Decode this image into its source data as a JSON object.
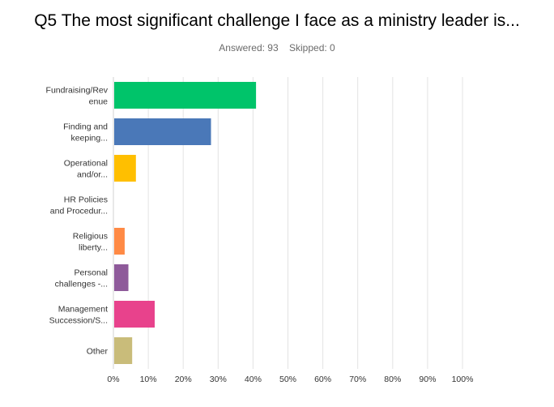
{
  "chart_data": {
    "type": "bar",
    "orientation": "horizontal",
    "title": "Q5 The most significant challenge I face as a ministry leader is...",
    "answered_label": "Answered: 93",
    "skipped_label": "Skipped: 0",
    "categories": [
      [
        "Fundraising/Rev",
        "enue"
      ],
      [
        "Finding and",
        "keeping..."
      ],
      [
        "Operational",
        "and/or..."
      ],
      [
        "HR Policies",
        "and Procedur..."
      ],
      [
        "Religious",
        "liberty..."
      ],
      [
        "Personal",
        "challenges -..."
      ],
      [
        "Management",
        "Succession/S..."
      ],
      [
        "Other"
      ]
    ],
    "values": [
      40.86,
      27.96,
      6.45,
      0,
      3.23,
      4.3,
      11.83,
      5.38
    ],
    "colors": [
      "#00c46a",
      "#4a78b8",
      "#ffbf00",
      "#b0b0b0",
      "#ff8a45",
      "#8e5a9a",
      "#e8428c",
      "#c9bc7a"
    ],
    "xlim": [
      0,
      100
    ],
    "ticks": [
      "0%",
      "10%",
      "20%",
      "30%",
      "40%",
      "50%",
      "60%",
      "70%",
      "80%",
      "90%",
      "100%"
    ],
    "grid": true
  }
}
